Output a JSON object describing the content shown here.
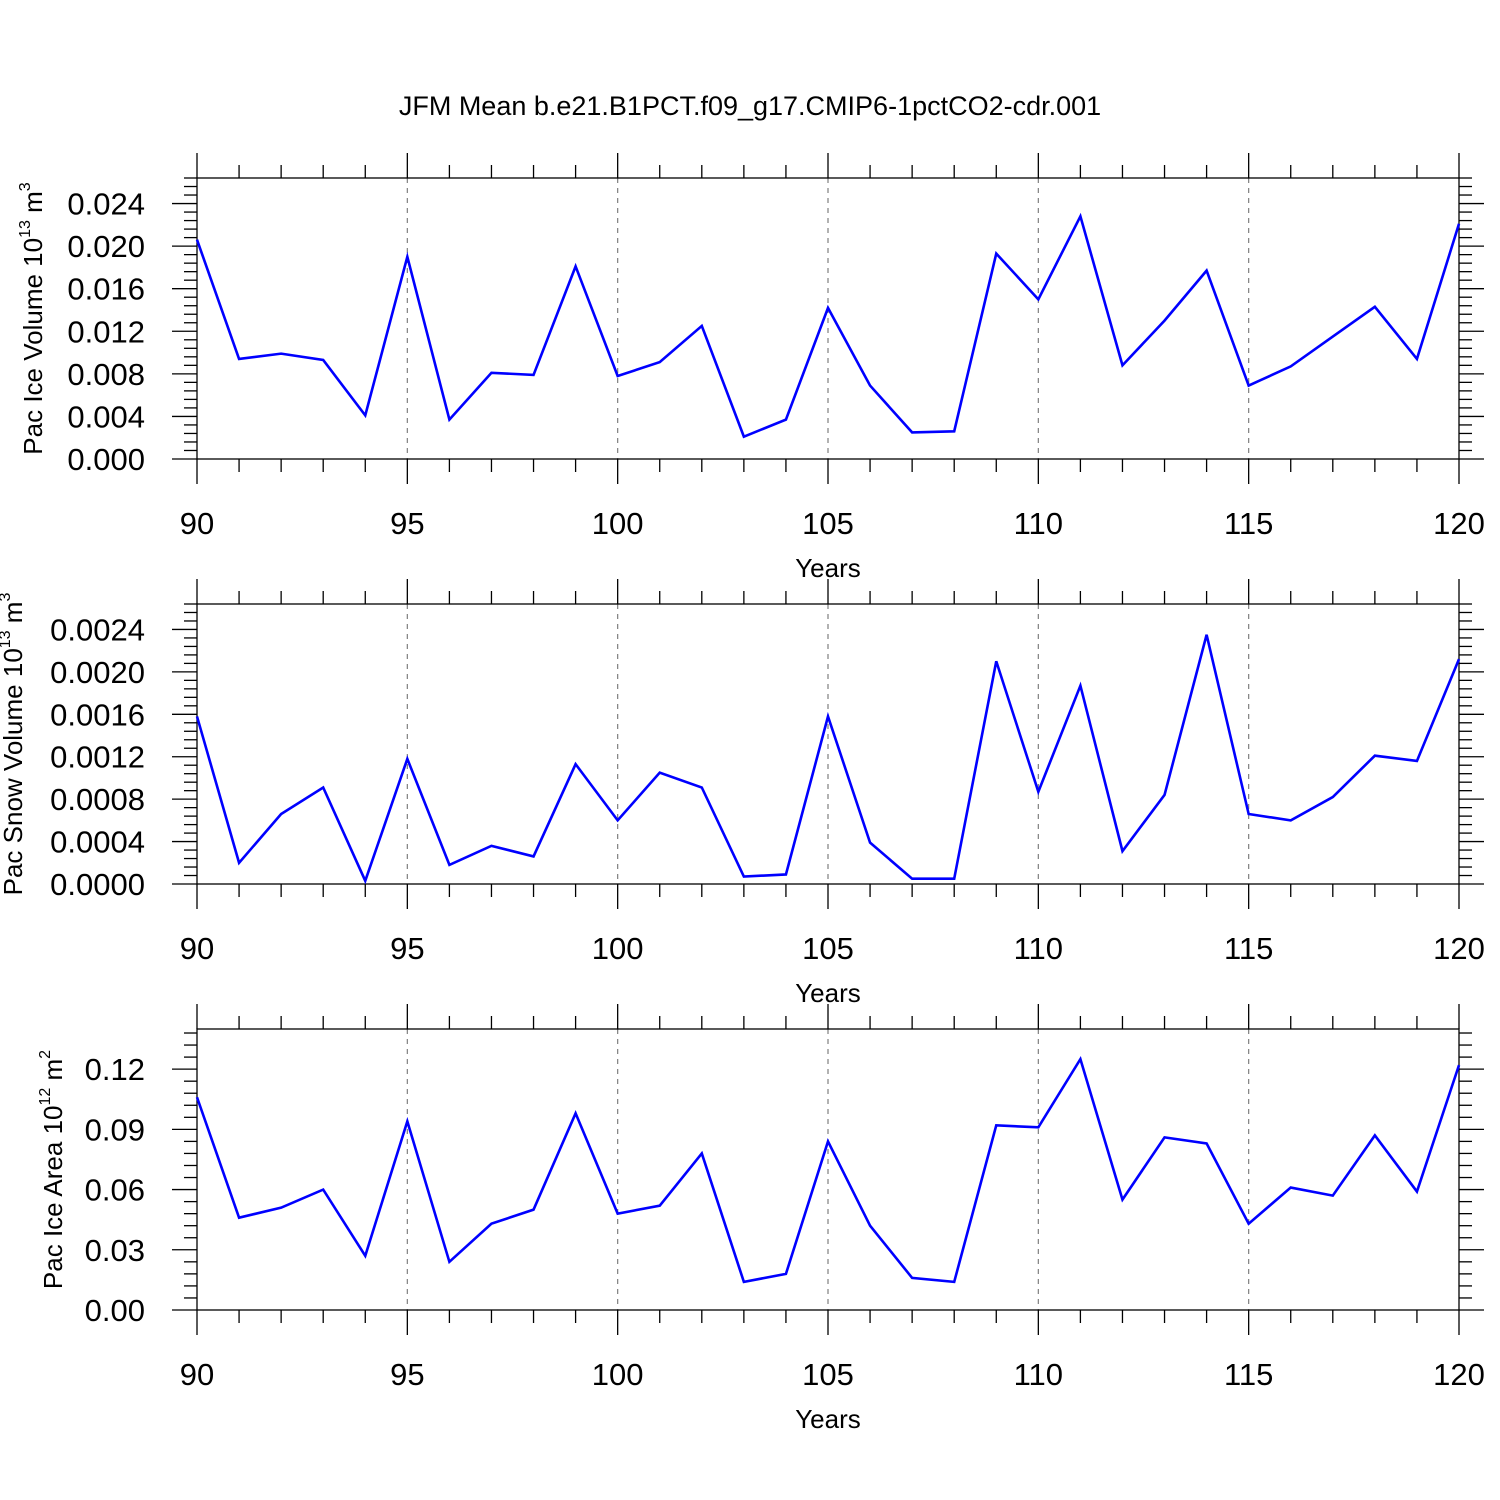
{
  "title": "JFM Mean b.e21.B1PCT.f09_g17.CMIP6-1pctCO2-cdr.001",
  "colors": {
    "line": "#0000ff",
    "axis": "#000000",
    "grid": "#7f7f7f"
  },
  "chart_data": [
    {
      "type": "line",
      "name": "ice-volume",
      "ylabel": {
        "text": "Pac Ice Volume 10",
        "sup": "13",
        "unit": " m",
        "unit_sup": "3"
      },
      "xlabel": "Years",
      "xlim": [
        90,
        120
      ],
      "ylim": [
        0,
        0.0264
      ],
      "xticks": [
        90,
        95,
        100,
        105,
        110,
        115,
        120
      ],
      "xtick_labels": [
        "90",
        "95",
        "100",
        "105",
        "110",
        "115",
        "120"
      ],
      "yticks": [
        0,
        0.004,
        0.008,
        0.012,
        0.016,
        0.02,
        0.024
      ],
      "ytick_labels": [
        "0.000",
        "0.004",
        "0.008",
        "0.012",
        "0.016",
        "0.020",
        "0.024"
      ],
      "x": [
        90,
        91,
        92,
        93,
        94,
        95,
        96,
        97,
        98,
        99,
        100,
        101,
        102,
        103,
        104,
        105,
        106,
        107,
        108,
        109,
        110,
        111,
        112,
        113,
        114,
        115,
        116,
        117,
        118,
        119,
        120
      ],
      "values": [
        0.0206,
        0.0094,
        0.0099,
        0.0093,
        0.0041,
        0.019,
        0.0037,
        0.0081,
        0.0079,
        0.0181,
        0.0078,
        0.0091,
        0.0125,
        0.0021,
        0.0037,
        0.0142,
        0.0069,
        0.0025,
        0.0026,
        0.0193,
        0.015,
        0.0228,
        0.0088,
        0.013,
        0.0177,
        0.0069,
        0.0087,
        0.0115,
        0.0143,
        0.0094,
        0.0221
      ]
    },
    {
      "type": "line",
      "name": "snow-volume",
      "ylabel": {
        "text": "Pac Snow Volume 10",
        "sup": "13",
        "unit": " m",
        "unit_sup": "3"
      },
      "xlabel": "Years",
      "xlim": [
        90,
        120
      ],
      "ylim": [
        0,
        0.00264
      ],
      "xticks": [
        90,
        95,
        100,
        105,
        110,
        115,
        120
      ],
      "xtick_labels": [
        "90",
        "95",
        "100",
        "105",
        "110",
        "115",
        "120"
      ],
      "yticks": [
        0,
        0.0004,
        0.0008,
        0.0012,
        0.0016,
        0.002,
        0.0024
      ],
      "ytick_labels": [
        "0.0000",
        "0.0004",
        "0.0008",
        "0.0012",
        "0.0016",
        "0.0020",
        "0.0024"
      ],
      "x": [
        90,
        91,
        92,
        93,
        94,
        95,
        96,
        97,
        98,
        99,
        100,
        101,
        102,
        103,
        104,
        105,
        106,
        107,
        108,
        109,
        110,
        111,
        112,
        113,
        114,
        115,
        116,
        117,
        118,
        119,
        120
      ],
      "values": [
        0.00158,
        0.0002,
        0.00066,
        0.00091,
        3e-05,
        0.00118,
        0.00018,
        0.00036,
        0.00026,
        0.00113,
        0.0006,
        0.00105,
        0.00091,
        7e-05,
        9e-05,
        0.00158,
        0.00039,
        5e-05,
        5e-05,
        0.0021,
        0.00087,
        0.00187,
        0.00031,
        0.00084,
        0.00235,
        0.00066,
        0.0006,
        0.00082,
        0.00121,
        0.00116,
        0.00212
      ]
    },
    {
      "type": "line",
      "name": "ice-area",
      "ylabel": {
        "text": "Pac Ice Area 10",
        "sup": "12",
        "unit": " m",
        "unit_sup": "2"
      },
      "xlabel": "Years",
      "xlim": [
        90,
        120
      ],
      "ylim": [
        0,
        0.14
      ],
      "xticks": [
        90,
        95,
        100,
        105,
        110,
        115,
        120
      ],
      "xtick_labels": [
        "90",
        "95",
        "100",
        "105",
        "110",
        "115",
        "120"
      ],
      "yticks": [
        0,
        0.03,
        0.06,
        0.09,
        0.12
      ],
      "ytick_labels": [
        "0.00",
        "0.03",
        "0.06",
        "0.09",
        "0.12"
      ],
      "x": [
        90,
        91,
        92,
        93,
        94,
        95,
        96,
        97,
        98,
        99,
        100,
        101,
        102,
        103,
        104,
        105,
        106,
        107,
        108,
        109,
        110,
        111,
        112,
        113,
        114,
        115,
        116,
        117,
        118,
        119,
        120
      ],
      "values": [
        0.106,
        0.046,
        0.051,
        0.06,
        0.027,
        0.094,
        0.024,
        0.043,
        0.05,
        0.098,
        0.048,
        0.052,
        0.078,
        0.014,
        0.018,
        0.084,
        0.042,
        0.016,
        0.014,
        0.092,
        0.091,
        0.125,
        0.055,
        0.086,
        0.083,
        0.043,
        0.061,
        0.057,
        0.087,
        0.059,
        0.122
      ]
    }
  ]
}
